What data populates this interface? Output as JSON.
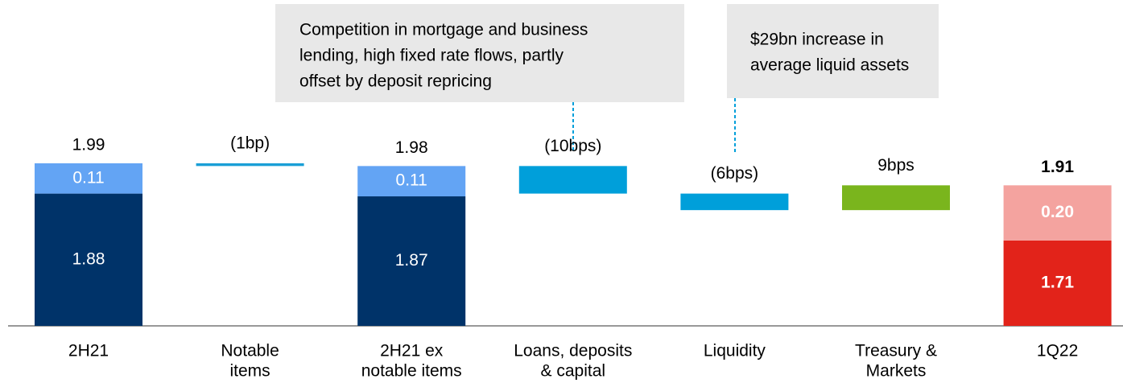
{
  "chart_data": {
    "type": "waterfall",
    "categories": [
      [
        "2H21"
      ],
      [
        "Notable",
        "items"
      ],
      [
        "2H21 ex",
        "notable items"
      ],
      [
        "Loans, deposits",
        "& capital"
      ],
      [
        "Liquidity"
      ],
      [
        "Treasury &",
        "Markets"
      ],
      [
        "1Q22"
      ]
    ],
    "totals": [
      1.99,
      null,
      1.98,
      null,
      null,
      null,
      1.91
    ],
    "bottom": [
      1.88,
      null,
      1.87,
      null,
      null,
      null,
      1.71
    ],
    "top": [
      0.11,
      null,
      0.11,
      null,
      null,
      null,
      0.2
    ],
    "top_labels": [
      "0.11",
      null,
      "0.11",
      null,
      null,
      null,
      "0.20"
    ],
    "changes": [
      null,
      -0.01,
      null,
      -0.1,
      -0.06,
      0.09,
      null
    ],
    "change_labels": [
      null,
      "(1bp)",
      null,
      "(10bps)",
      "(6bps)",
      "9bps",
      null
    ],
    "bottom_colors": [
      "#003369",
      null,
      "#003369",
      null,
      null,
      null,
      "#e2231a"
    ],
    "top_colors": [
      "#63a4f4",
      null,
      "#63a4f4",
      null,
      null,
      null,
      "#f4a39f"
    ],
    "change_colors": [
      null,
      "#1a9fd6",
      null,
      "#009fda",
      "#009fda",
      "#7ab51d",
      null
    ],
    "ylim": [
      1.4,
      2.0
    ],
    "annotations": [
      {
        "category": 3,
        "lines": [
          "Competition in mortgage and business",
          "lending, high fixed rate flows, partly",
          "offset by deposit repricing"
        ]
      },
      {
        "category": 4,
        "lines": [
          "$29bn increase in",
          "average liquid assets"
        ]
      }
    ]
  }
}
